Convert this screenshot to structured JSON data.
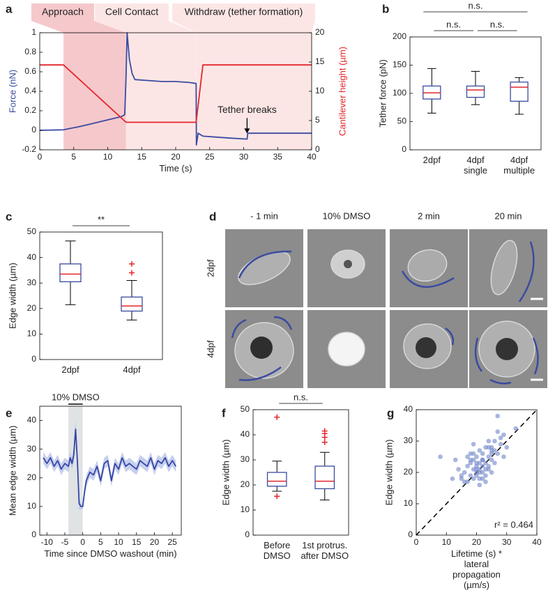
{
  "chart_data": [
    {
      "panel_label": "a",
      "type": "line",
      "phases": [
        {
          "label": "Approach",
          "start": 3.5,
          "end": 12.7,
          "color": "#f5c8cc"
        },
        {
          "label": "Cell Contact",
          "start": 12.7,
          "end": 23,
          "color": "#fce6e5"
        },
        {
          "label": "Withdraw (tether formation)",
          "start": 23,
          "end": 40,
          "color": "#fce6e5"
        }
      ],
      "xlabel": "Time (s)",
      "ylabel": "Force (nN)",
      "y2label": "Cantilever height (µm)",
      "xlim": [
        0,
        40
      ],
      "xticks": [
        0,
        5,
        10,
        15,
        20,
        25,
        30,
        35,
        40
      ],
      "ylim": [
        -0.2,
        1
      ],
      "yticks": [
        -0.2,
        0,
        0.2,
        0.4,
        0.6,
        0.8,
        1
      ],
      "y2lim": [
        0,
        20
      ],
      "y2ticks": [
        0,
        5,
        10,
        15,
        20
      ],
      "series": [
        {
          "color": "#3a4ba0",
          "x": [
            0,
            3.5,
            6,
            9,
            12,
            12.5,
            12.7,
            12.85,
            13.2,
            13.6,
            14,
            16,
            18,
            20,
            22,
            23,
            23.05,
            23.3,
            24,
            26,
            28,
            30.5,
            30.6,
            35,
            40
          ],
          "values": [
            0,
            0.005,
            0.04,
            0.09,
            0.14,
            0.16,
            0.55,
            1,
            0.72,
            0.58,
            0.52,
            0.51,
            0.5,
            0.5,
            0.49,
            0.48,
            -0.15,
            -0.03,
            -0.06,
            -0.07,
            -0.08,
            -0.09,
            -0.03,
            -0.03,
            -0.03
          ]
        },
        {
          "color": "#e2262b",
          "axis": "y2",
          "x": [
            0,
            3.5,
            12.7,
            23,
            24,
            40
          ],
          "values": [
            14.5,
            14.5,
            4.7,
            4.7,
            14.5,
            14.5
          ]
        }
      ],
      "annotation": {
        "text": "Tether breaks",
        "x": 30.5,
        "y": -0.06
      }
    },
    {
      "panel_label": "b",
      "type": "box",
      "ylabel": "Tether force (pN)",
      "categories": [
        "2dpf",
        "4dpf\nsingle",
        "4dpf\nmultiple"
      ],
      "boxes": [
        {
          "whislo": 65,
          "q1": 90,
          "med": 101,
          "q3": 113,
          "whishi": 144,
          "fliers": []
        },
        {
          "whislo": 80,
          "q1": 93,
          "med": 106,
          "q3": 113,
          "whishi": 139,
          "fliers": []
        },
        {
          "whislo": 63,
          "q1": 86,
          "med": 111,
          "q3": 120,
          "whishi": 128,
          "fliers": []
        }
      ],
      "color": "#3a4ba0",
      "median_color": "#e2262b",
      "flier_color": "#e2262b",
      "ylim": [
        0,
        200
      ],
      "yticks": [
        0,
        50,
        100,
        150,
        200
      ],
      "significance": [
        {
          "from": 0,
          "to": 2,
          "label": "n.s."
        },
        {
          "from": 0,
          "to": 1,
          "label": "n.s."
        },
        {
          "from": 1,
          "to": 2,
          "label": "n.s."
        }
      ]
    },
    {
      "panel_label": "c",
      "type": "box",
      "ylabel": "Edge width (µm)",
      "categories": [
        "2dpf",
        "4dpf"
      ],
      "boxes": [
        {
          "whislo": 21.5,
          "q1": 30.5,
          "med": 33.5,
          "q3": 37.5,
          "whishi": 46.5,
          "fliers": []
        },
        {
          "whislo": 15.5,
          "q1": 19,
          "med": 21,
          "q3": 24.5,
          "whishi": 31,
          "fliers": [
            34,
            37.5
          ]
        }
      ],
      "color": "#3a4ba0",
      "median_color": "#e2262b",
      "flier_color": "#e2262b",
      "ylim": [
        0,
        50
      ],
      "yticks": [
        0,
        10,
        20,
        30,
        40,
        50
      ],
      "significance": [
        {
          "from": 0,
          "to": 1,
          "label": "**"
        }
      ]
    },
    {
      "panel_label": "e",
      "type": "line",
      "xlabel": "Time since DMSO washout (min)",
      "ylabel": "Mean edge width (µm)",
      "xlim": [
        -12,
        27.5
      ],
      "xticks": [
        -10,
        -5,
        0,
        5,
        10,
        15,
        20,
        25
      ],
      "ylim": [
        0,
        45
      ],
      "yticks": [
        0,
        10,
        20,
        30,
        40
      ],
      "shade": {
        "start": -4,
        "end": 0,
        "label": "10% DMSO",
        "color": "#e0e3e4"
      },
      "series": [
        {
          "color": "#3346a6",
          "band_color": "#b9c3ea",
          "x": [
            -11,
            -10,
            -9,
            -8,
            -7,
            -6,
            -5,
            -4,
            -3.5,
            -3,
            -2.5,
            -2,
            -1.5,
            -1,
            -0.5,
            0,
            0.5,
            1,
            2,
            3,
            4,
            5,
            6,
            7,
            8,
            9,
            10,
            11,
            12,
            13,
            14,
            15,
            16,
            17,
            18,
            19,
            20,
            21,
            22,
            23,
            24,
            25,
            26
          ],
          "values": [
            27,
            25,
            27,
            24,
            26,
            23,
            25,
            24,
            27,
            25,
            28,
            37,
            26,
            11,
            10,
            10,
            15,
            19,
            22,
            21,
            24,
            19,
            25,
            26,
            19,
            25,
            23,
            27,
            24,
            25,
            24,
            23,
            26,
            25,
            24,
            27,
            23,
            26,
            25,
            27,
            24,
            26,
            24
          ],
          "error": [
            2,
            2,
            2,
            2,
            2,
            2,
            2,
            2,
            2,
            2,
            3,
            3,
            3,
            2,
            1,
            1,
            2,
            2,
            2,
            2,
            2,
            2,
            2,
            2,
            2,
            2,
            2,
            2,
            2,
            2,
            2,
            2,
            2,
            2,
            2,
            2,
            2,
            2,
            2,
            2,
            2,
            2,
            2
          ]
        }
      ]
    },
    {
      "panel_label": "f",
      "type": "box",
      "ylabel": "Edge width (µm)",
      "categories": [
        "Before\nDMSO",
        "1st protrus.\nafter DMSO"
      ],
      "boxes": [
        {
          "whislo": 17.5,
          "q1": 19.5,
          "med": 21.5,
          "q3": 25,
          "whishi": 29.5,
          "fliers": [
            47,
            15.5
          ]
        },
        {
          "whislo": 14,
          "q1": 18.5,
          "med": 21.5,
          "q3": 27.5,
          "whishi": 33,
          "fliers": [
            37,
            39,
            40.5,
            41.5
          ]
        }
      ],
      "color": "#3a4ba0",
      "median_color": "#e2262b",
      "flier_color": "#e2262b",
      "ylim": [
        0,
        50
      ],
      "yticks": [
        0,
        10,
        20,
        30,
        40,
        50
      ],
      "significance": [
        {
          "from": 0,
          "to": 1,
          "label": "n.s."
        }
      ]
    },
    {
      "panel_label": "g",
      "type": "scatter",
      "xlabel": "Lifetime (s) *\nlateral propagation (µm/s)",
      "ylabel": "Edge width (µm)",
      "xlim": [
        0,
        40
      ],
      "xticks": [
        0,
        10,
        20,
        30,
        40
      ],
      "ylim": [
        0,
        40
      ],
      "yticks": [
        0,
        10,
        20,
        30,
        40
      ],
      "color": "#6e83c8",
      "identity_line": true,
      "annotation": "r² = 0.464",
      "x": [
        8,
        12,
        15,
        16,
        17,
        17,
        18,
        18,
        19,
        19,
        19,
        20,
        20,
        20,
        20,
        21,
        21,
        21,
        21,
        22,
        22,
        22,
        22,
        23,
        23,
        23,
        24,
        24,
        24,
        25,
        25,
        25,
        26,
        26,
        27,
        27,
        28,
        29,
        30,
        33,
        14,
        16,
        18,
        19,
        20,
        21,
        22,
        23,
        24,
        25,
        26,
        22,
        20,
        18,
        24,
        21,
        23,
        19,
        17,
        25,
        28,
        13,
        15,
        27,
        29
      ],
      "values": [
        25,
        18,
        18,
        20,
        17,
        22,
        19,
        23,
        21,
        18,
        24,
        22,
        19,
        25,
        20,
        23,
        21,
        18,
        27,
        22,
        20,
        24,
        26,
        23,
        19,
        21,
        25,
        22,
        28,
        24,
        26,
        20,
        27,
        23,
        26,
        38,
        29,
        25,
        28,
        34,
        21,
        17,
        24,
        26,
        21,
        20,
        24,
        28,
        30,
        27,
        30,
        18,
        23,
        26,
        21,
        16,
        17,
        29,
        25,
        28,
        31,
        24,
        19,
        33,
        32
      ]
    }
  ],
  "image_panel": {
    "panel_label": "d",
    "columns": [
      "- 1 min",
      "10% DMSO",
      "2 min",
      "20 min"
    ],
    "rows": [
      "2dpf",
      "4dpf"
    ]
  }
}
